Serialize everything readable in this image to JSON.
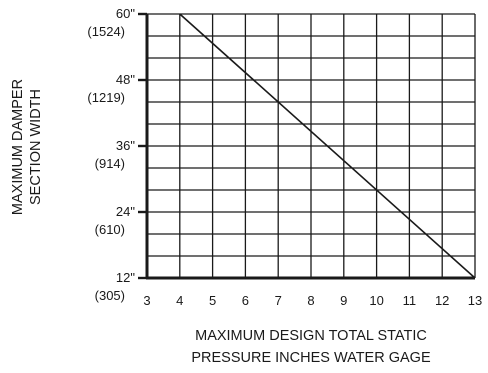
{
  "chart_data": {
    "type": "line",
    "ylabel_lines": [
      "MAXIMUM DAMPER",
      "SECTION WIDTH"
    ],
    "xlabel_lines": [
      "MAXIMUM DESIGN TOTAL STATIC",
      "PRESSURE INCHES WATER GAGE"
    ],
    "xlim": [
      3,
      13
    ],
    "ylim": [
      12,
      60
    ],
    "x_ticks": [
      3,
      4,
      5,
      6,
      7,
      8,
      9,
      10,
      11,
      12,
      13
    ],
    "x_tick_labels": [
      "3",
      "4",
      "5",
      "6",
      "7",
      "8",
      "9",
      "10",
      "11",
      "12",
      "13"
    ],
    "y_ticks": [
      {
        "value": 60,
        "label": "60\"",
        "label2": "(1524)"
      },
      {
        "value": 48,
        "label": "48\"",
        "label2": "(1219)"
      },
      {
        "value": 36,
        "label": "36\"",
        "label2": "(914)"
      },
      {
        "value": 24,
        "label": "24\"",
        "label2": "(610)"
      },
      {
        "value": 12,
        "label": "12\"",
        "label2": "(305)"
      }
    ],
    "grid": true,
    "series": [
      {
        "x": [
          4,
          13
        ],
        "y": [
          60,
          12
        ]
      }
    ]
  },
  "colors": {
    "ink": "#1a1a1a",
    "grid": "#1a1a1a",
    "background": "#ffffff"
  }
}
